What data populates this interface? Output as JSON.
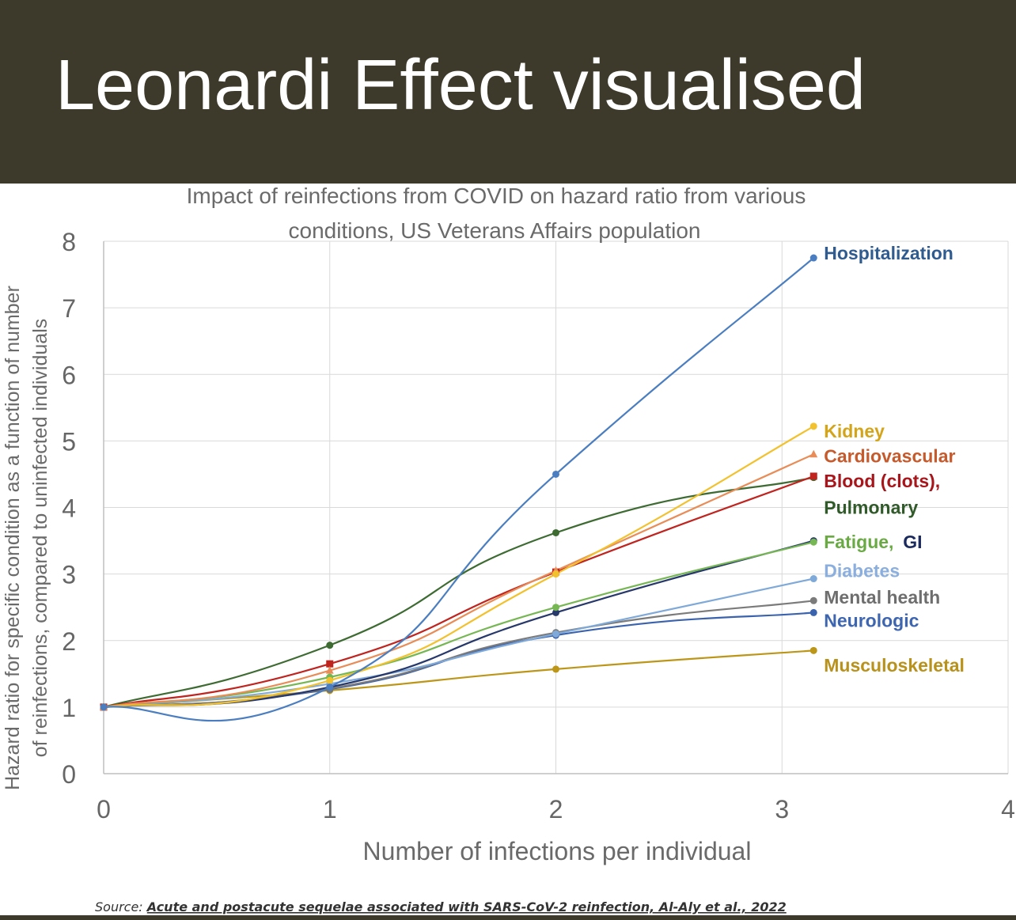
{
  "header": {
    "title": "Leonardi Effect visualised"
  },
  "source": {
    "prefix": "Source:",
    "text": "Acute and postacute sequelae associated with SARS-CoV-2 reinfection, Al-Aly et al., 2022"
  },
  "chart_data": {
    "type": "line",
    "title_lines": [
      "Impact of reinfections from COVID on hazard ratio from various",
      "conditions, US Veterans Affairs population"
    ],
    "xlabel": "Number of infections per individual",
    "ylabel_lines": [
      "Hazard ratio for specific condition as a function of number",
      "of reinfections, compared to uninfected individuals"
    ],
    "xlim": [
      0,
      4
    ],
    "ylim": [
      0,
      8
    ],
    "xticks": [
      "0",
      "1",
      "2",
      "3",
      "4"
    ],
    "yticks": [
      "0",
      "1",
      "2",
      "3",
      "4",
      "5",
      "6",
      "7",
      "8"
    ],
    "grid": true,
    "x": [
      0,
      1,
      2,
      3.14
    ],
    "series": [
      {
        "name": "Hospitalization",
        "color": "#4a7ec0",
        "label_color": "#2f5b8f",
        "marker": "circle",
        "values": [
          1,
          1.3,
          4.5,
          7.75
        ],
        "label_value": 7.82
      },
      {
        "name": "Kidney",
        "color": "#f2c12e",
        "label_color": "#d4a419",
        "marker": "circle",
        "values": [
          1,
          1.4,
          3.0,
          5.22
        ],
        "label_value": 5.15
      },
      {
        "name": "Cardiovascular",
        "color": "#e88d58",
        "label_color": "#c55a2c",
        "marker": "triangle",
        "values": [
          1,
          1.55,
          3.05,
          4.8
        ],
        "label_value": 4.77
      },
      {
        "name": "Blood (clots),",
        "color": "#c0241f",
        "label_color": "#a8161b",
        "marker": "square",
        "values": [
          1,
          1.65,
          3.03,
          4.47
        ],
        "label_value": 4.4
      },
      {
        "name": "Pulmonary",
        "color": "#3d6b32",
        "label_color": "#305a29",
        "marker": "circle",
        "values": [
          1,
          1.93,
          3.62,
          4.45
        ],
        "label_value": 4.0
      },
      {
        "name": "Fatigue,",
        "color": "#76b754",
        "label_color": "#6aaa43",
        "marker": "circle",
        "values": [
          1,
          1.45,
          2.5,
          3.48
        ],
        "label_value": 3.48
      },
      {
        "name": "GI",
        "color": "#27386b",
        "label_color": "#1c2b5e",
        "marker": "circle",
        "values": [
          1,
          1.3,
          2.42,
          3.5
        ],
        "label_value": 3.48
      },
      {
        "name": "Diabetes",
        "color": "#7fa9d8",
        "label_color": "#8aaede",
        "marker": "circle",
        "values": [
          1,
          1.35,
          2.1,
          2.93
        ],
        "label_value": 3.05
      },
      {
        "name": "Mental health",
        "color": "#7b7b7b",
        "label_color": "#6e6e6e",
        "marker": "circle",
        "values": [
          1,
          1.28,
          2.12,
          2.6
        ],
        "label_value": 2.65
      },
      {
        "name": "Neurologic",
        "color": "#3b63ad",
        "label_color": "#3e66b0",
        "marker": "circle",
        "values": [
          1,
          1.27,
          2.08,
          2.42
        ],
        "label_value": 2.3
      },
      {
        "name": "Musculoskeletal",
        "color": "#bc9618",
        "label_color": "#b8921a",
        "marker": "circle",
        "values": [
          1,
          1.25,
          1.57,
          1.85
        ],
        "label_value": 1.63
      }
    ]
  }
}
